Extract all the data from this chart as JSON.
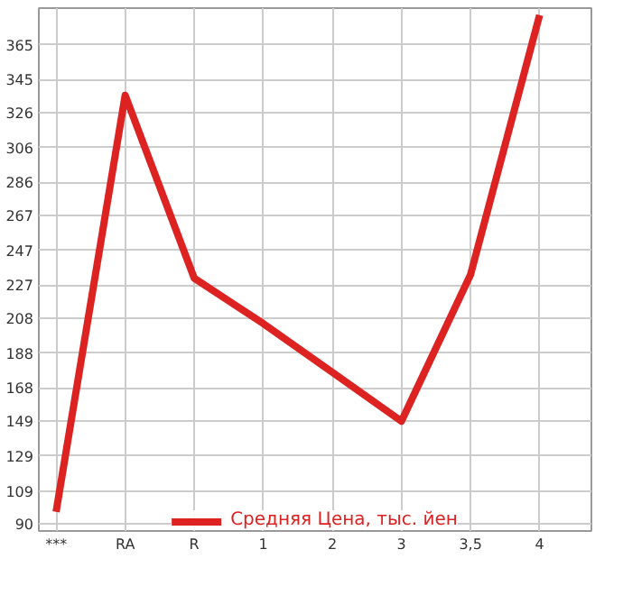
{
  "chart_data": {
    "type": "line",
    "categories": [
      "***",
      "RA",
      "R",
      "1",
      "2",
      "3",
      "3,5",
      "4"
    ],
    "series": [
      {
        "name": "Средняя Цена, тыс. йен",
        "color": "#dd2222",
        "values": [
          97,
          336,
          231,
          205,
          177,
          149,
          233,
          382
        ]
      }
    ],
    "ylim": [
      86,
      386
    ],
    "yticks": [
      90,
      109,
      129,
      149,
      168,
      188,
      208,
      227,
      247,
      267,
      286,
      306,
      326,
      345,
      365
    ],
    "grid": true,
    "legend": "bottom",
    "marker": "none",
    "line_style": "solid"
  }
}
